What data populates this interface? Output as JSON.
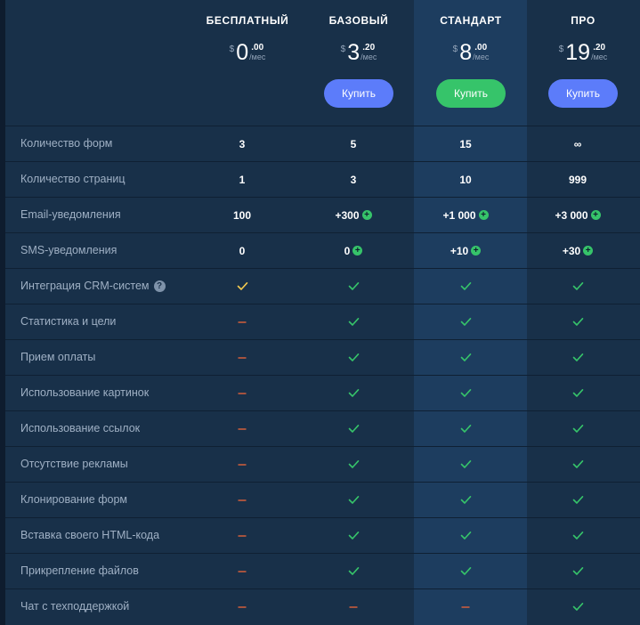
{
  "colors": {
    "check": "#36c46a",
    "check_yellow": "#f3c94e",
    "dash": "#e0623a"
  },
  "plans": [
    {
      "name": "БЕСПЛАТНЫЙ",
      "currency": "$",
      "amount": "0",
      "decimals": ".00",
      "period": "/мес",
      "buy_label": null
    },
    {
      "name": "БАЗОВЫЙ",
      "currency": "$",
      "amount": "3",
      "decimals": ".20",
      "period": "/мес",
      "buy_label": "Купить"
    },
    {
      "name": "СТАНДАРТ",
      "currency": "$",
      "amount": "8",
      "decimals": ".00",
      "period": "/мес",
      "buy_label": "Купить"
    },
    {
      "name": "ПРО",
      "currency": "$",
      "amount": "19",
      "decimals": ".20",
      "period": "/мес",
      "buy_label": "Купить"
    }
  ],
  "features": [
    {
      "label": "Количество форм",
      "values": [
        {
          "t": "text",
          "v": "3"
        },
        {
          "t": "text",
          "v": "5"
        },
        {
          "t": "text",
          "v": "15"
        },
        {
          "t": "text",
          "v": "∞"
        }
      ]
    },
    {
      "label": "Количество страниц",
      "values": [
        {
          "t": "text",
          "v": "1"
        },
        {
          "t": "text",
          "v": "3"
        },
        {
          "t": "text",
          "v": "10"
        },
        {
          "t": "text",
          "v": "999"
        }
      ]
    },
    {
      "label": "Email-уведомления",
      "values": [
        {
          "t": "text",
          "v": "100"
        },
        {
          "t": "text",
          "v": "+300",
          "plus": true
        },
        {
          "t": "text",
          "v": "+1 000",
          "plus": true
        },
        {
          "t": "text",
          "v": "+3 000",
          "plus": true
        }
      ]
    },
    {
      "label": "SMS-уведомления",
      "values": [
        {
          "t": "text",
          "v": "0"
        },
        {
          "t": "text",
          "v": "0",
          "plus": true
        },
        {
          "t": "text",
          "v": "+10",
          "plus": true
        },
        {
          "t": "text",
          "v": "+30",
          "plus": true
        }
      ]
    },
    {
      "label": "Интеграция CRM-систем",
      "help": "?",
      "values": [
        {
          "t": "check-yellow"
        },
        {
          "t": "check"
        },
        {
          "t": "check"
        },
        {
          "t": "check"
        }
      ]
    },
    {
      "label": "Статистика и цели",
      "values": [
        {
          "t": "dash"
        },
        {
          "t": "check"
        },
        {
          "t": "check"
        },
        {
          "t": "check"
        }
      ]
    },
    {
      "label": "Прием оплаты",
      "values": [
        {
          "t": "dash"
        },
        {
          "t": "check"
        },
        {
          "t": "check"
        },
        {
          "t": "check"
        }
      ]
    },
    {
      "label": "Использование картинок",
      "values": [
        {
          "t": "dash"
        },
        {
          "t": "check"
        },
        {
          "t": "check"
        },
        {
          "t": "check"
        }
      ]
    },
    {
      "label": "Использование ссылок",
      "values": [
        {
          "t": "dash"
        },
        {
          "t": "check"
        },
        {
          "t": "check"
        },
        {
          "t": "check"
        }
      ]
    },
    {
      "label": "Отсутствие рекламы",
      "values": [
        {
          "t": "dash"
        },
        {
          "t": "check"
        },
        {
          "t": "check"
        },
        {
          "t": "check"
        }
      ]
    },
    {
      "label": "Клонирование форм",
      "values": [
        {
          "t": "dash"
        },
        {
          "t": "check"
        },
        {
          "t": "check"
        },
        {
          "t": "check"
        }
      ]
    },
    {
      "label": "Вставка своего HTML-кода",
      "values": [
        {
          "t": "dash"
        },
        {
          "t": "check"
        },
        {
          "t": "check"
        },
        {
          "t": "check"
        }
      ]
    },
    {
      "label": "Прикрепление файлов",
      "values": [
        {
          "t": "dash"
        },
        {
          "t": "check"
        },
        {
          "t": "check"
        },
        {
          "t": "check"
        }
      ]
    },
    {
      "label": "Чат с техподдержкой",
      "values": [
        {
          "t": "dash"
        },
        {
          "t": "dash"
        },
        {
          "t": "dash"
        },
        {
          "t": "check"
        }
      ]
    }
  ]
}
